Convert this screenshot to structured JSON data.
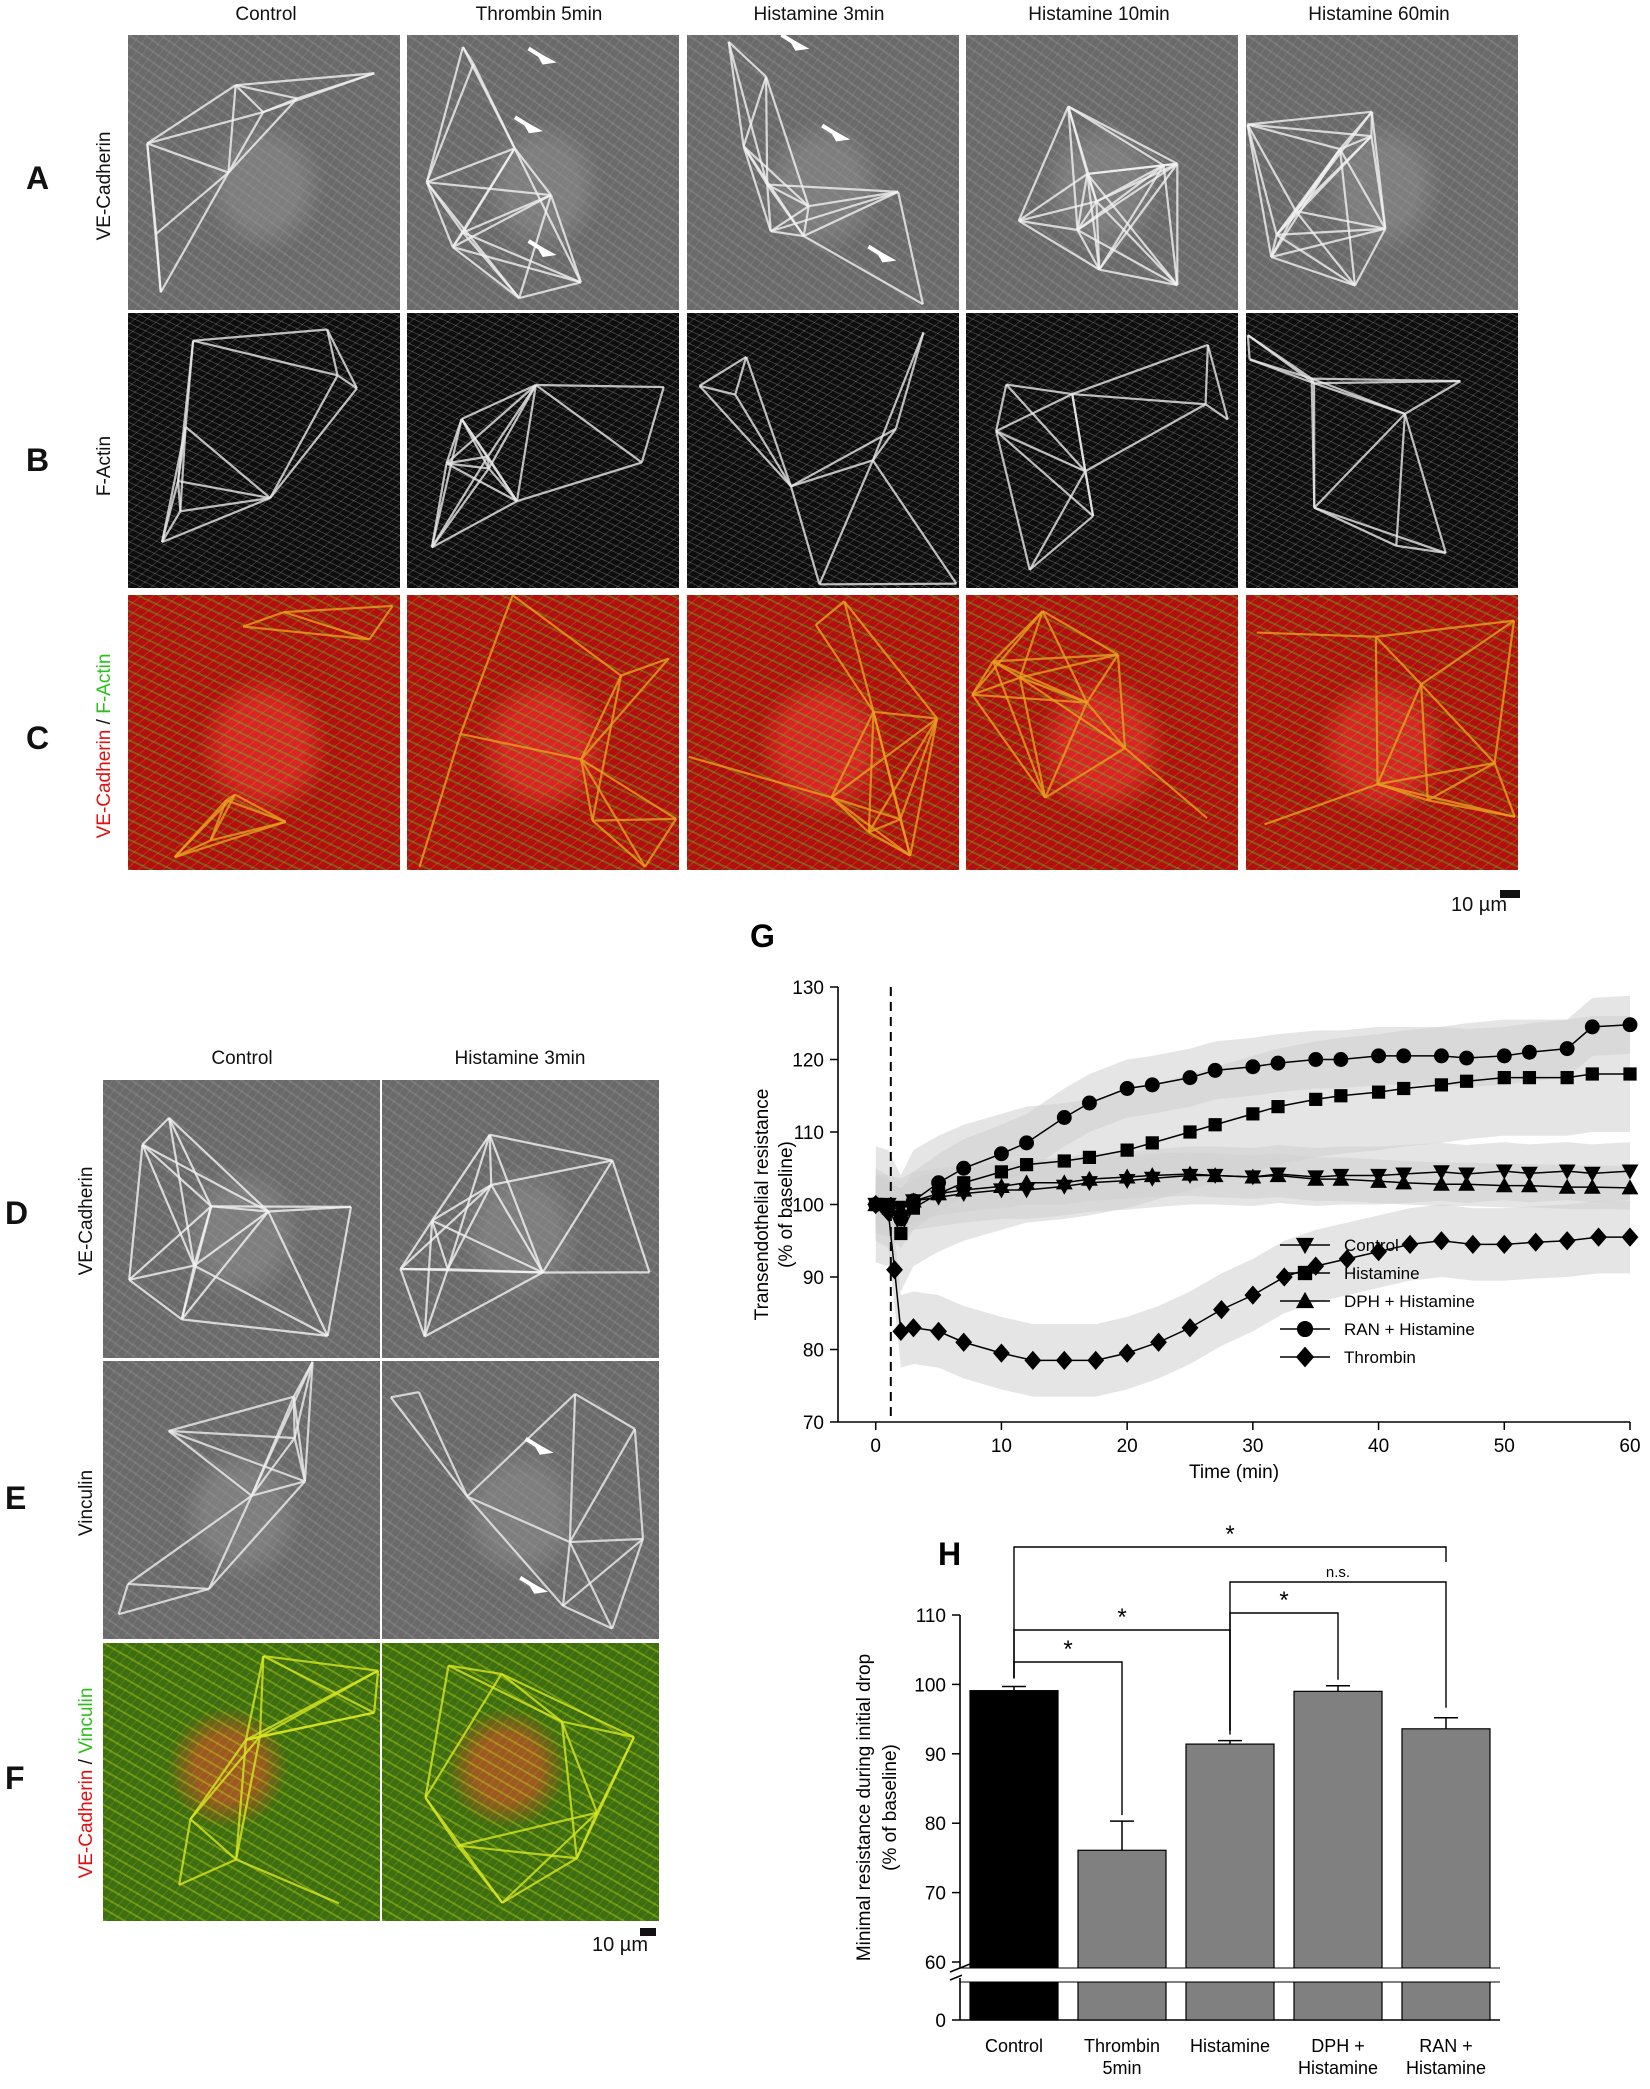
{
  "top_figure": {
    "columns": [
      "Control",
      "Thrombin 5min",
      "Histamine 3min",
      "Histamine 10min",
      "Histamine 60min"
    ],
    "rows": [
      {
        "letter": "A",
        "label": "VE-Cadherin"
      },
      {
        "letter": "B",
        "label": "F-Actin"
      },
      {
        "letter": "C",
        "label_red": "VE-Cadherin",
        "label_sep": " / ",
        "label_green": "F-Actin"
      }
    ],
    "scale_label": "10 µm"
  },
  "bottom_figure": {
    "columns": [
      "Control",
      "Histamine 3min"
    ],
    "rows": [
      {
        "letter": "D",
        "label": "VE-Cadherin"
      },
      {
        "letter": "E",
        "label": "Vinculin"
      },
      {
        "letter": "F",
        "label_red": "VE-Cadherin",
        "label_sep": " / ",
        "label_green": "Vinculin"
      }
    ],
    "scale_label": "10 µm"
  },
  "colors": {
    "red": "#e01010",
    "green": "#2cc01a",
    "bar_black": "#000000",
    "bar_gray": "#808080",
    "band_gray": "#cfcfcf"
  },
  "chart_data": [
    {
      "panel": "G",
      "type": "line",
      "xlabel": "Time (min)",
      "ylabel_line1": "Transendothelial resistance",
      "ylabel_line2": "(% of baseline)",
      "xlim": [
        -3,
        60
      ],
      "ylim": [
        70,
        130
      ],
      "xticks": [
        0,
        10,
        20,
        30,
        40,
        50,
        60
      ],
      "yticks": [
        70,
        80,
        90,
        100,
        110,
        120,
        130
      ],
      "vline_x": 1.2,
      "legend_position": "bottom-right",
      "series": [
        {
          "name": "Control",
          "marker": "triangle-down",
          "x": [
            0,
            1,
            2,
            3,
            5,
            7,
            10,
            12,
            15,
            17,
            20,
            22,
            25,
            27,
            30,
            32,
            35,
            37,
            40,
            42,
            45,
            47,
            50,
            52,
            55,
            57,
            60
          ],
          "y": [
            100,
            100,
            99.6,
            100.5,
            101,
            101.5,
            102,
            102,
            102.5,
            103,
            103.3,
            103.6,
            104,
            104,
            103.8,
            104.2,
            103.8,
            104,
            104,
            104.2,
            104.5,
            104.2,
            104.6,
            104.3,
            104.6,
            104.3,
            104.6
          ],
          "band": 4
        },
        {
          "name": "Histamine",
          "marker": "square",
          "x": [
            0,
            1,
            2,
            3,
            5,
            7,
            10,
            12,
            15,
            17,
            20,
            22,
            25,
            27,
            30,
            32,
            35,
            37,
            40,
            42,
            45,
            47,
            50,
            52,
            55,
            57,
            60
          ],
          "y": [
            100,
            99.5,
            96,
            99.5,
            101.5,
            103,
            104.5,
            105.5,
            106,
            106.5,
            107.5,
            108.5,
            110,
            111,
            112.5,
            113.5,
            114.5,
            115,
            115.5,
            116,
            116.5,
            117,
            117.5,
            117.5,
            117.5,
            118,
            118
          ],
          "band": 8
        },
        {
          "name": "DPH + Histamine",
          "marker": "triangle-up",
          "x": [
            0,
            1,
            2,
            3,
            5,
            7,
            10,
            12,
            15,
            17,
            20,
            22,
            25,
            27,
            30,
            32,
            35,
            37,
            40,
            42,
            45,
            47,
            50,
            52,
            55,
            57,
            60
          ],
          "y": [
            100,
            99.8,
            99.3,
            100.5,
            101.5,
            102,
            102.5,
            103,
            103,
            103.5,
            103.8,
            104,
            104.2,
            104,
            103.8,
            104,
            103.5,
            103.5,
            103.2,
            103,
            102.8,
            102.8,
            102.6,
            102.6,
            102.4,
            102.4,
            102.3
          ],
          "band": 3
        },
        {
          "name": "RAN + Histamine",
          "marker": "circle",
          "x": [
            0,
            1,
            2,
            3,
            5,
            7,
            10,
            12,
            15,
            17,
            20,
            22,
            25,
            27,
            30,
            32,
            35,
            37,
            40,
            42,
            45,
            47,
            50,
            52,
            55,
            57,
            60
          ],
          "y": [
            100,
            99.5,
            98,
            100.5,
            103,
            105,
            107,
            108.5,
            112,
            114,
            116,
            116.5,
            117.5,
            118.5,
            119,
            119.5,
            120,
            120,
            120.5,
            120.5,
            120.5,
            120.2,
            120.5,
            121,
            121.5,
            124.5,
            124.8
          ],
          "band": 4
        },
        {
          "name": "Thrombin",
          "marker": "diamond",
          "x": [
            0,
            1,
            1.5,
            2,
            3,
            5,
            7,
            10,
            12.5,
            15,
            17.5,
            20,
            22.5,
            25,
            27.5,
            30,
            32.5,
            35,
            37.5,
            40,
            42.5,
            45,
            47.5,
            50,
            52.5,
            55,
            57.5,
            60
          ],
          "y": [
            100,
            99,
            91,
            82.5,
            83,
            82.5,
            81,
            79.5,
            78.5,
            78.5,
            78.5,
            79.5,
            81,
            83,
            85.5,
            87.5,
            90,
            91.5,
            92.5,
            93.5,
            94.5,
            95,
            94.5,
            94.5,
            94.8,
            95,
            95.5,
            95.5
          ],
          "band": 5
        }
      ]
    },
    {
      "panel": "H",
      "type": "bar",
      "ylabel_line1": "Minimal resistance during initial drop",
      "ylabel_line2": "(% of baseline)",
      "categories": [
        [
          "Control"
        ],
        [
          "Thrombin",
          "5min"
        ],
        [
          "Histamine"
        ],
        [
          "DPH +",
          "Histamine"
        ],
        [
          "RAN +",
          "Histamine"
        ]
      ],
      "values": [
        99.1,
        76.1,
        91.4,
        99.0,
        93.6
      ],
      "errors": [
        0.6,
        4.2,
        0.5,
        0.8,
        1.6
      ],
      "yticks_upper": [
        60,
        70,
        80,
        90,
        100,
        110
      ],
      "yticks_lower": [
        0
      ],
      "axis_break": true,
      "ylim_upper": [
        60,
        110
      ],
      "significance": [
        {
          "from": 0,
          "to": 1,
          "label": "*"
        },
        {
          "from": 0,
          "to": 2,
          "label": "*"
        },
        {
          "from": 2,
          "to": 3,
          "label": "*"
        },
        {
          "from": 2,
          "to": 4,
          "label": "n.s."
        },
        {
          "from": 0,
          "to": 4,
          "label": "*"
        }
      ]
    }
  ]
}
